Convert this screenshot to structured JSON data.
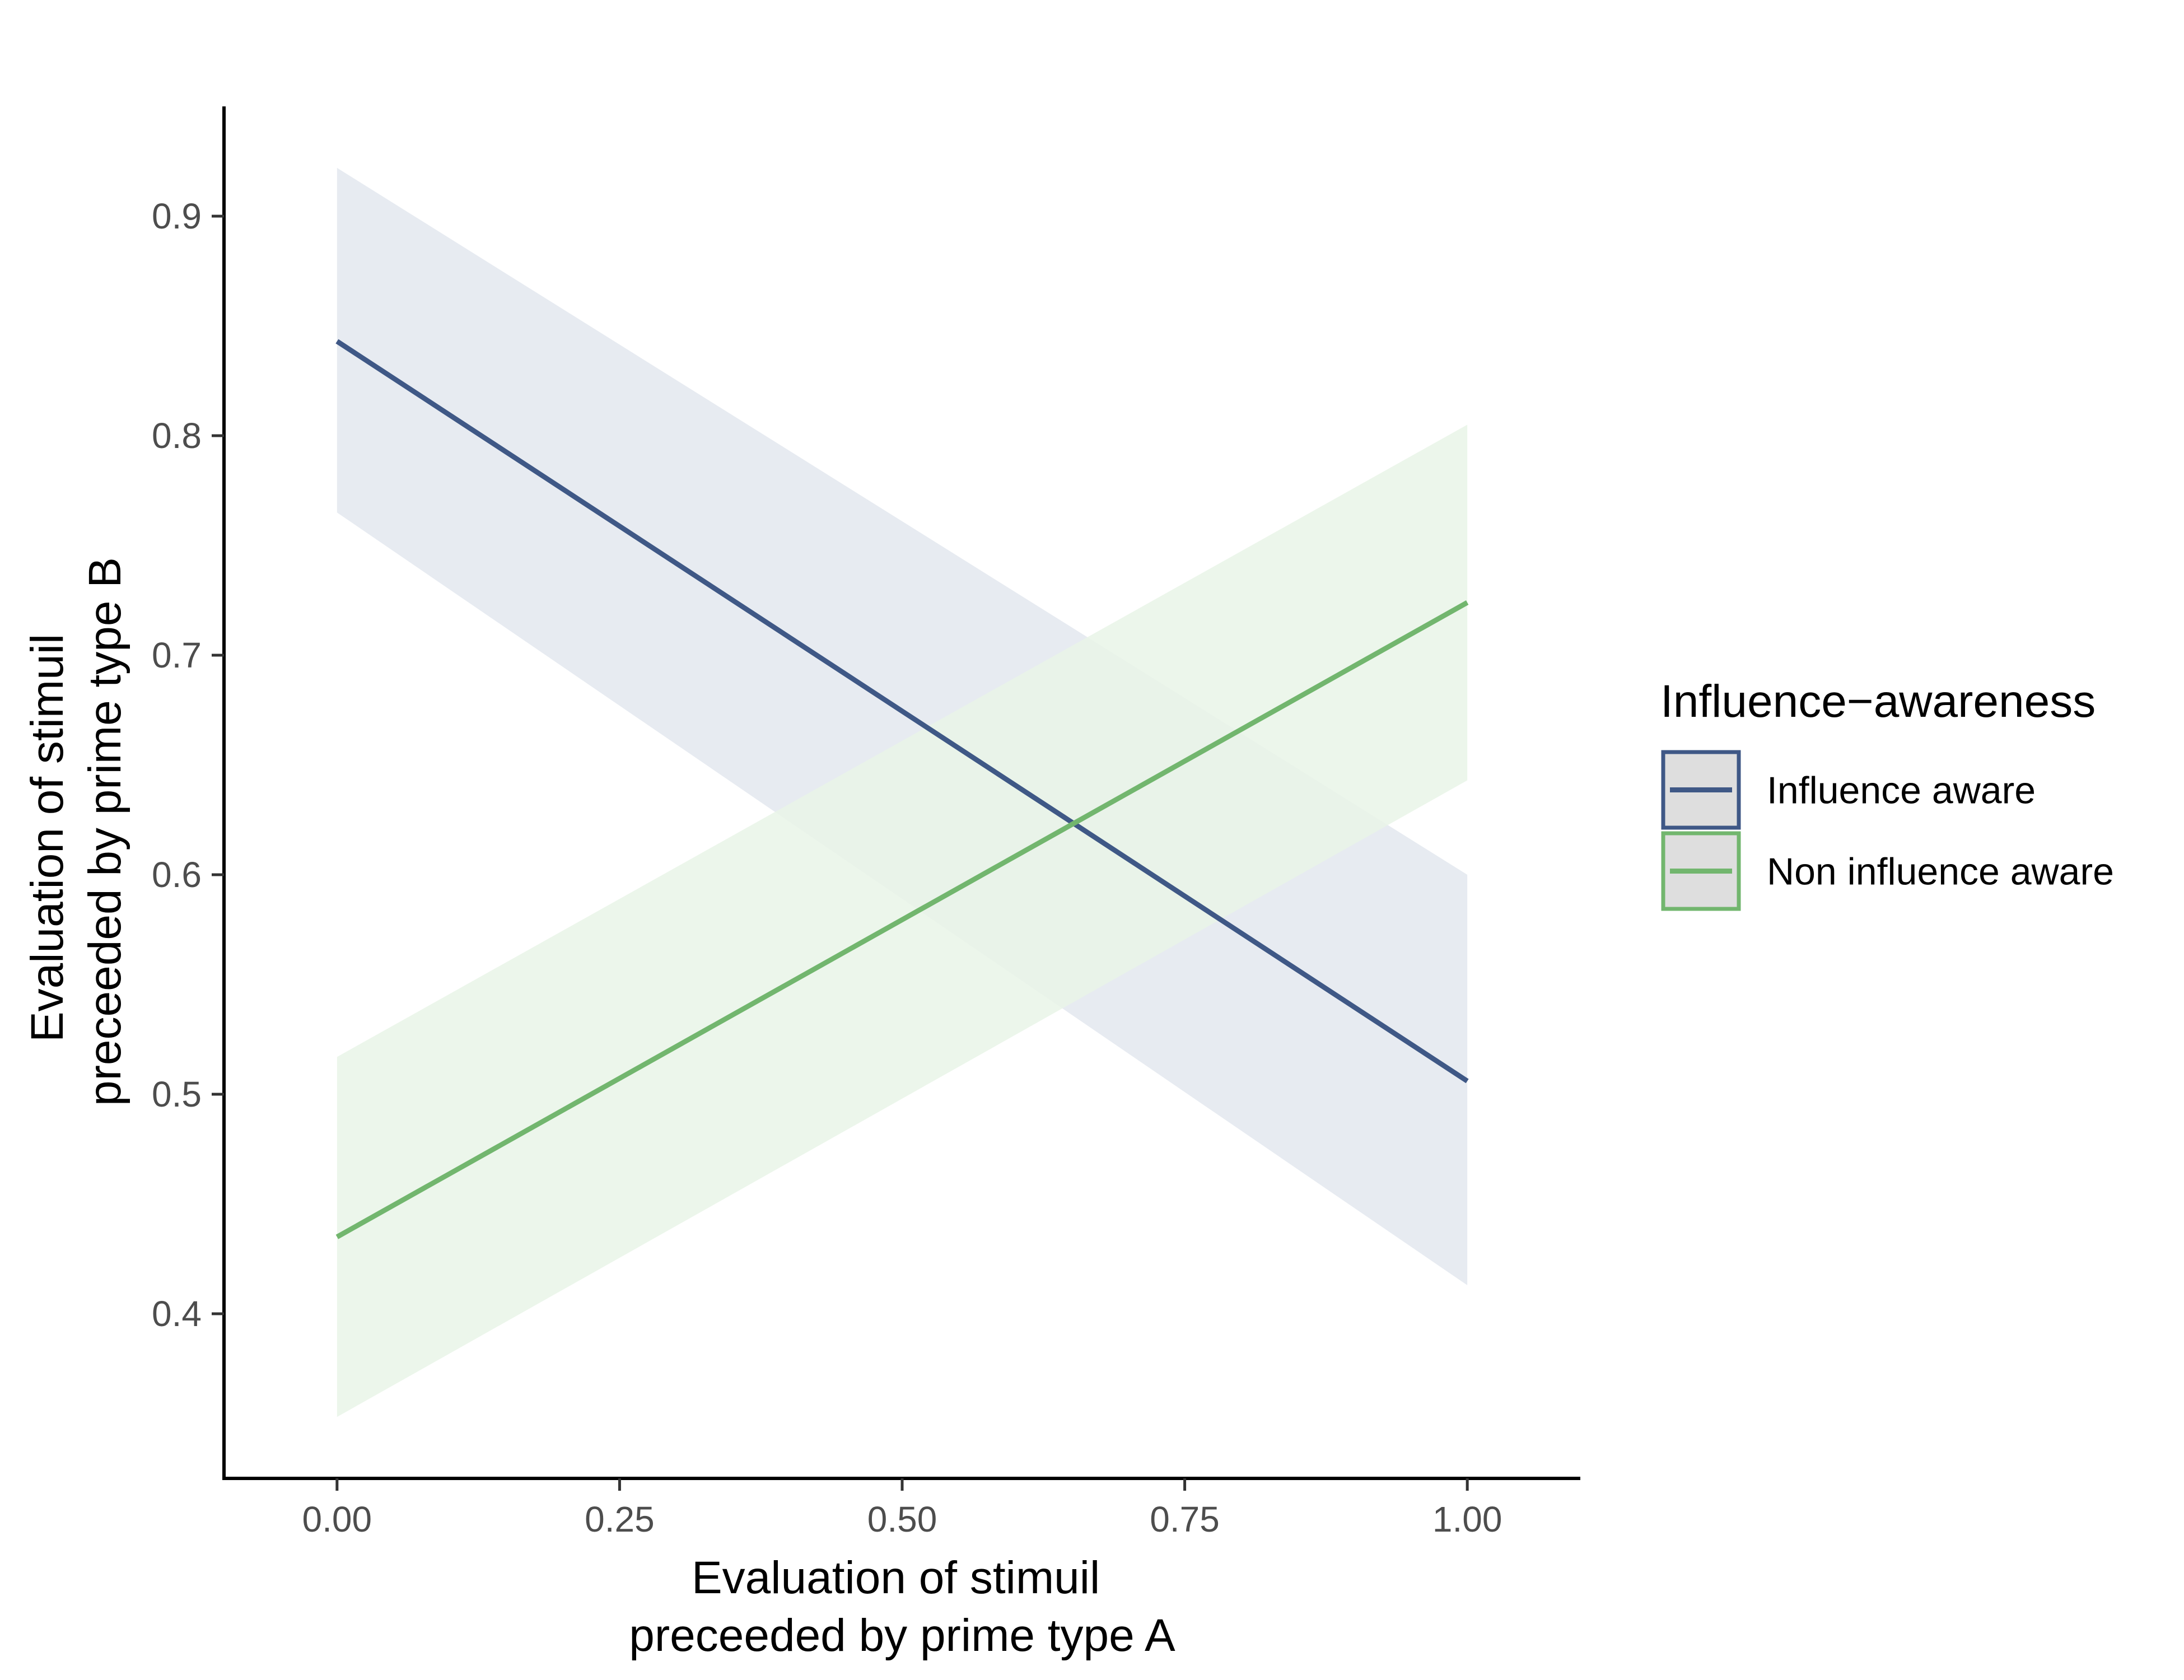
{
  "chart_data": {
    "type": "line",
    "title": "",
    "xlabel": [
      "Evaluation of stimuil",
      "preceeded by prime type A"
    ],
    "ylabel": [
      "Evaluation of stimuil",
      "preceeded by prime type B"
    ],
    "xlim": [
      -0.1,
      1.1
    ],
    "ylim": [
      0.325,
      0.95
    ],
    "x_ticks": [
      0.0,
      0.25,
      0.5,
      0.75,
      1.0
    ],
    "x_tick_labels": [
      "0.00",
      "0.25",
      "0.50",
      "0.75",
      "1.00"
    ],
    "y_ticks": [
      0.4,
      0.5,
      0.6,
      0.7,
      0.8,
      0.9
    ],
    "y_tick_labels": [
      "0.4",
      "0.5",
      "0.6",
      "0.7",
      "0.8",
      "0.9"
    ],
    "grid": false,
    "legend": {
      "title": "Influence−awareness",
      "placement": "right"
    },
    "series": [
      {
        "name": "Influence aware",
        "color": "#3f5886",
        "ribbon_color": "#e3e7ee",
        "x": [
          0.0,
          1.0
        ],
        "y": [
          0.843,
          0.506
        ],
        "lower": [
          0.765,
          0.413
        ],
        "upper": [
          0.922,
          0.6
        ]
      },
      {
        "name": "Non influence aware",
        "color": "#72b66e",
        "ribbon_color": "#e9f4e7",
        "x": [
          0.0,
          1.0
        ],
        "y": [
          0.435,
          0.724
        ],
        "lower": [
          0.353,
          0.643
        ],
        "upper": [
          0.517,
          0.805
        ]
      }
    ]
  }
}
